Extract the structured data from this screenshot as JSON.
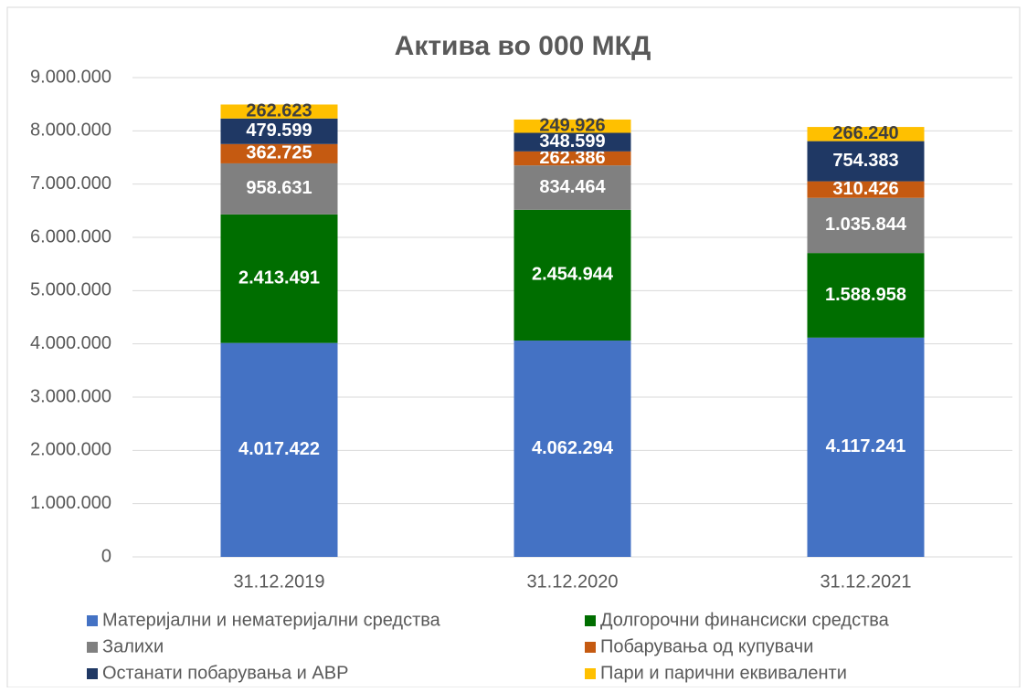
{
  "chart_data": {
    "type": "stacked_bar",
    "title": "Актива во 000 МКД",
    "categories": [
      "31.12.2019",
      "31.12.2020",
      "31.12.2021"
    ],
    "series": [
      {
        "name": "Материјални и нематеријални средства",
        "color": "#4472c4",
        "values": [
          4017422,
          4062294,
          4117241
        ],
        "value_labels": [
          "4.017.422",
          "4.062.294",
          "4.117.241"
        ]
      },
      {
        "name": "Долгорочни финансиски средства",
        "color": "#006e00",
        "values": [
          2413491,
          2454944,
          1588958
        ],
        "value_labels": [
          "2.413.491",
          "2.454.944",
          "1.588.958"
        ]
      },
      {
        "name": "Залихи",
        "color": "#808080",
        "values": [
          958631,
          834464,
          1035844
        ],
        "value_labels": [
          "958.631",
          "834.464",
          "1.035.844"
        ]
      },
      {
        "name": "Побарувања од купувачи",
        "color": "#c55a11",
        "values": [
          362725,
          262386,
          310426
        ],
        "value_labels": [
          "362.725",
          "262.386",
          "310.426"
        ]
      },
      {
        "name": "Останати побарувања и АВР",
        "color": "#1f3864",
        "values": [
          479599,
          348599,
          754383
        ],
        "value_labels": [
          "479.599",
          "348.599",
          "754.383"
        ]
      },
      {
        "name": "Пари и парични еквиваленти",
        "color": "#ffc000",
        "values": [
          262623,
          249926,
          266240
        ],
        "value_labels": [
          "262.623",
          "249.926",
          "266.240"
        ]
      }
    ],
    "ylim": [
      0,
      9000000
    ],
    "yticks": [
      {
        "value": 0,
        "label": "0"
      },
      {
        "value": 1000000,
        "label": "1.000.000"
      },
      {
        "value": 2000000,
        "label": "2.000.000"
      },
      {
        "value": 3000000,
        "label": "3.000.000"
      },
      {
        "value": 4000000,
        "label": "4.000.000"
      },
      {
        "value": 5000000,
        "label": "5.000.000"
      },
      {
        "value": 6000000,
        "label": "6.000.000"
      },
      {
        "value": 7000000,
        "label": "7.000.000"
      },
      {
        "value": 8000000,
        "label": "8.000.000"
      },
      {
        "value": 9000000,
        "label": "9.000.000"
      }
    ],
    "grid": true,
    "legend": "bottom"
  }
}
